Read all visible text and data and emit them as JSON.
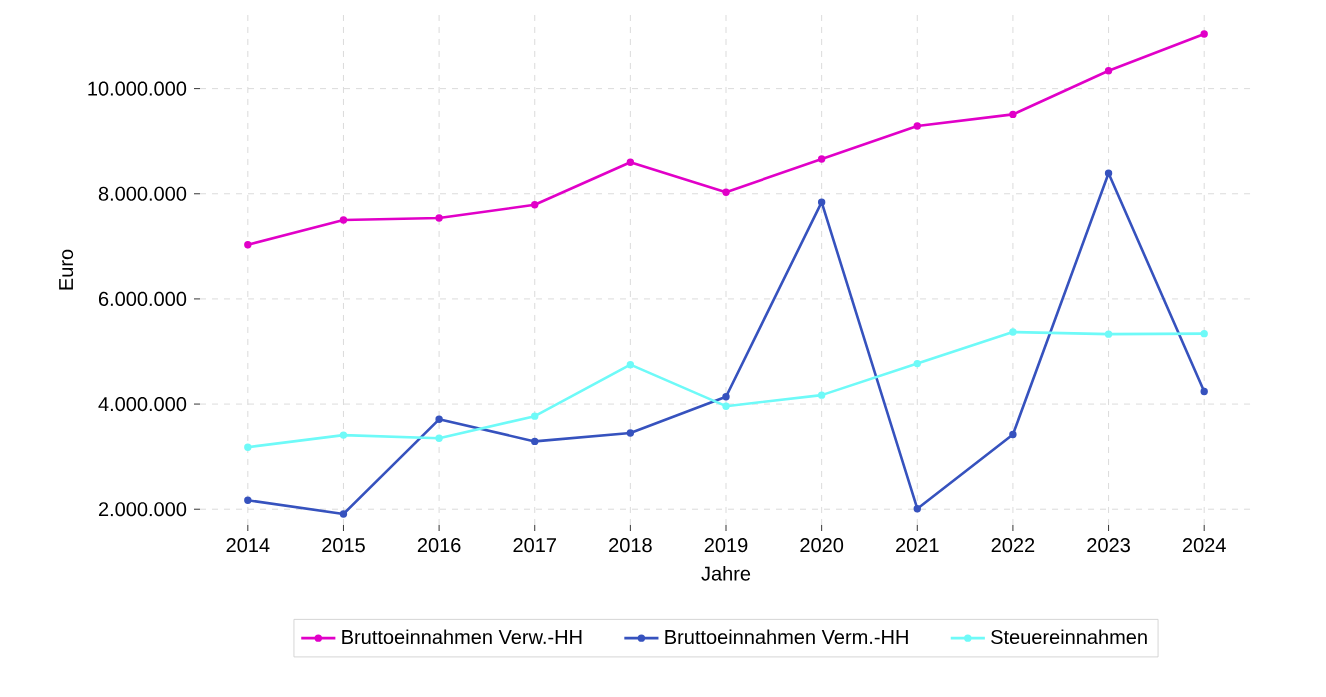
{
  "chart_data": {
    "type": "line",
    "xlabel": "Jahre",
    "ylabel": "Euro",
    "categories": [
      "2014",
      "2015",
      "2016",
      "2017",
      "2018",
      "2019",
      "2020",
      "2021",
      "2022",
      "2023",
      "2024"
    ],
    "series": [
      {
        "name": "Bruttoeinnahmen Verw.-HH",
        "color": "#e100c8",
        "values": [
          7030000,
          7500000,
          7540000,
          7790000,
          8600000,
          8030000,
          8660000,
          9290000,
          9510000,
          10340000,
          11040000
        ]
      },
      {
        "name": "Bruttoeinnahmen Verm.-HH",
        "color": "#3652be",
        "values": [
          2170000,
          1910000,
          3710000,
          3290000,
          3450000,
          4140000,
          7840000,
          2010000,
          3420000,
          8390000,
          4240000
        ]
      },
      {
        "name": "Steuereinnahmen",
        "color": "#6efaf8",
        "values": [
          3180000,
          3410000,
          3350000,
          3770000,
          4750000,
          3960000,
          4170000,
          4770000,
          5370000,
          5330000,
          5340000
        ]
      }
    ],
    "ylim": [
      1700000,
      11400000
    ],
    "yticks": [
      {
        "value": 2000000,
        "label": "2.000.000"
      },
      {
        "value": 4000000,
        "label": "4.000.000"
      },
      {
        "value": 6000000,
        "label": "6.000.000"
      },
      {
        "value": 8000000,
        "label": "8.000.000"
      },
      {
        "value": 10000000,
        "label": "10.000.000"
      }
    ],
    "grid": true,
    "legend": "bottom",
    "marker": "circle",
    "line_style": "solid"
  }
}
